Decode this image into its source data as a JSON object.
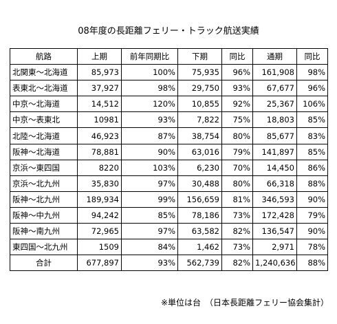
{
  "title": "08年度の長距離フェリー・トラック航送実績",
  "headers": [
    "航路",
    "上期",
    "前年同期比",
    "下期",
    "同比",
    "通期",
    "同比"
  ],
  "rows": [
    [
      "北関東～北海道",
      "85,973",
      "100%",
      "75,935",
      "96%",
      "161,908",
      "98%"
    ],
    [
      "表東北～北海道",
      "37,927",
      "98%",
      "29,750",
      "93%",
      "67,677",
      "96%"
    ],
    [
      "中京～北海道",
      "14,512",
      "120%",
      "10,855",
      "92%",
      "25,367",
      "106%"
    ],
    [
      "中京～表東北",
      "10981",
      "93%",
      "7,822",
      "75%",
      "18,803",
      "85%"
    ],
    [
      "北陸～北海道",
      "46,923",
      "87%",
      "38,754",
      "80%",
      "85,677",
      "83%"
    ],
    [
      "阪神～北海道",
      "78,881",
      "90%",
      "63,016",
      "79%",
      "141,897",
      "85%"
    ],
    [
      "京浜～東四国",
      "8220",
      "103%",
      "6,230",
      "70%",
      "14,450",
      "86%"
    ],
    [
      "京浜～北九州",
      "35,830",
      "97%",
      "30,488",
      "80%",
      "66,318",
      "88%"
    ],
    [
      "阪神～北九州",
      "189,934",
      "99%",
      "156,659",
      "81%",
      "346,593",
      "90%"
    ],
    [
      "阪神～中九州",
      "94,242",
      "85%",
      "78,186",
      "73%",
      "172,428",
      "79%"
    ],
    [
      "阪神～南九州",
      "72,965",
      "97%",
      "63,582",
      "82%",
      "136,547",
      "90%"
    ],
    [
      "東四国～北九州",
      "1509",
      "84%",
      "1,462",
      "73%",
      "2,971",
      "78%"
    ]
  ],
  "total": [
    "合計",
    "677,897",
    "93%",
    "562,739",
    "82%",
    "1,240,636",
    "88%"
  ],
  "footnote": "※単位は台　（日本長距離フェリー協会集計）"
}
